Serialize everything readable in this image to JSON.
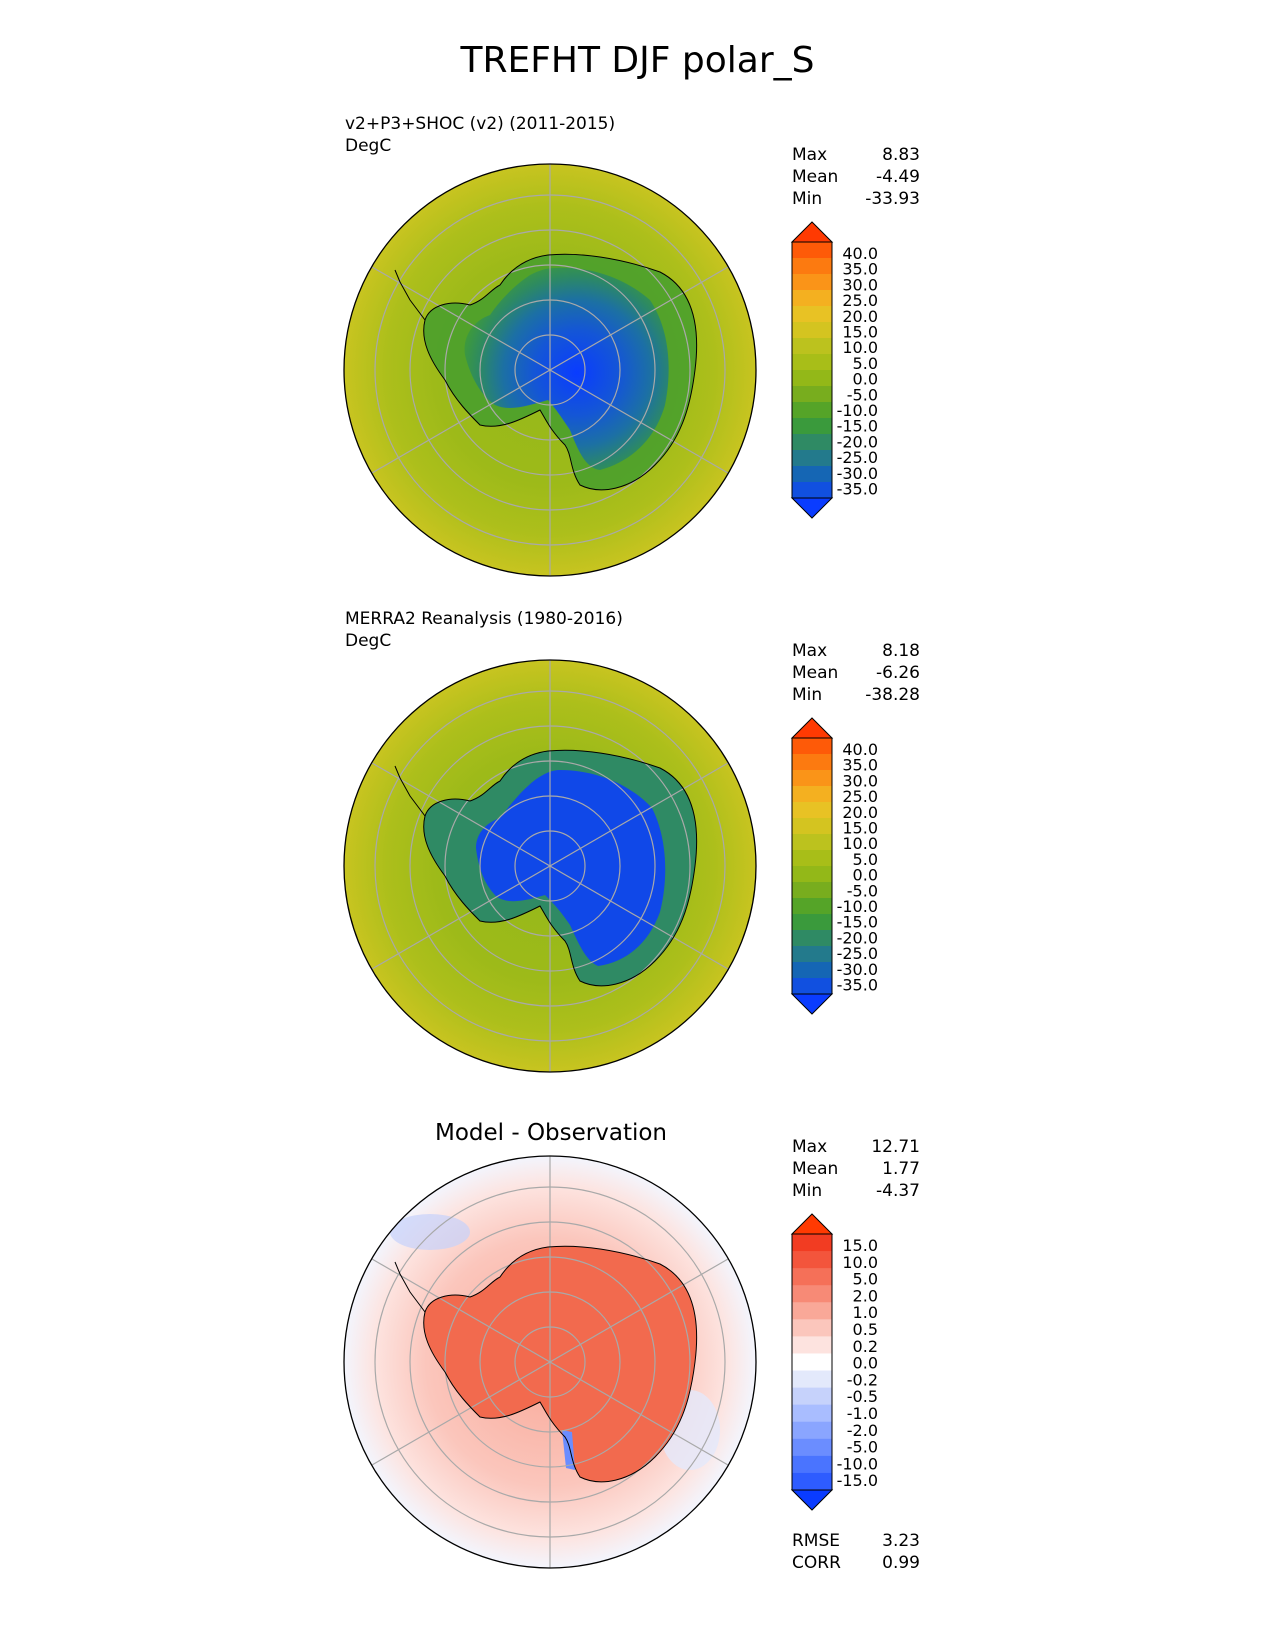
{
  "title": "TREFHT DJF polar_S",
  "panels": [
    {
      "id": "test",
      "label_line1": "v2+P3+SHOC (v2) (2011-2015)",
      "label_line2": "DegC",
      "stats": [
        {
          "name": "Max",
          "value": "8.83"
        },
        {
          "name": "Mean",
          "value": "-4.49"
        },
        {
          "name": "Min",
          "value": "-33.93"
        }
      ],
      "colorbar_labels": [
        "40.0",
        "35.0",
        "30.0",
        "25.0",
        "20.0",
        "15.0",
        "10.0",
        "5.0",
        "0.0",
        "-5.0",
        "-10.0",
        "-15.0",
        "-20.0",
        "-25.0",
        "-30.0",
        "-35.0"
      ]
    },
    {
      "id": "reference",
      "label_line1": "MERRA2 Reanalysis (1980-2016)",
      "label_line2": "DegC",
      "stats": [
        {
          "name": "Max",
          "value": "8.18"
        },
        {
          "name": "Mean",
          "value": "-6.26"
        },
        {
          "name": "Min",
          "value": "-38.28"
        }
      ],
      "colorbar_labels": [
        "40.0",
        "35.0",
        "30.0",
        "25.0",
        "20.0",
        "15.0",
        "10.0",
        "5.0",
        "0.0",
        "-5.0",
        "-10.0",
        "-15.0",
        "-20.0",
        "-25.0",
        "-30.0",
        "-35.0"
      ]
    },
    {
      "id": "diff",
      "center_title": "Model - Observation",
      "stats": [
        {
          "name": "Max",
          "value": "12.71"
        },
        {
          "name": "Mean",
          "value": "1.77"
        },
        {
          "name": "Min",
          "value": "-4.37"
        }
      ],
      "colorbar_labels": [
        "15.0",
        "10.0",
        "5.0",
        "2.0",
        "1.0",
        "0.5",
        "0.2",
        "0.0",
        "-0.2",
        "-0.5",
        "-1.0",
        "-2.0",
        "-5.0",
        "-10.0",
        "-15.0"
      ],
      "metrics": [
        {
          "name": "RMSE",
          "value": "3.23"
        },
        {
          "name": "CORR",
          "value": "0.99"
        }
      ]
    }
  ],
  "colors": {
    "abs_scale": [
      "#0a3cff",
      "#1150e0",
      "#1566b4",
      "#237a8c",
      "#2f8a64",
      "#3a9a3c",
      "#55a428",
      "#78ad1e",
      "#93b818",
      "#a8be18",
      "#bcc21e",
      "#d4c420",
      "#e8c224",
      "#f4b020",
      "#fa9418",
      "#fc7a10",
      "#fe5a08",
      "#ff3a02"
    ],
    "diff_scale": [
      "#0a3cff",
      "#2e5cff",
      "#4a74ff",
      "#6b8dff",
      "#8aa5ff",
      "#a9bdff",
      "#c6d2fb",
      "#e3e9fb",
      "#ffffff",
      "#fde3df",
      "#fbc6bc",
      "#f9a898",
      "#f78a76",
      "#f57058",
      "#f3553c",
      "#f23c22",
      "#ff3a02"
    ]
  }
}
